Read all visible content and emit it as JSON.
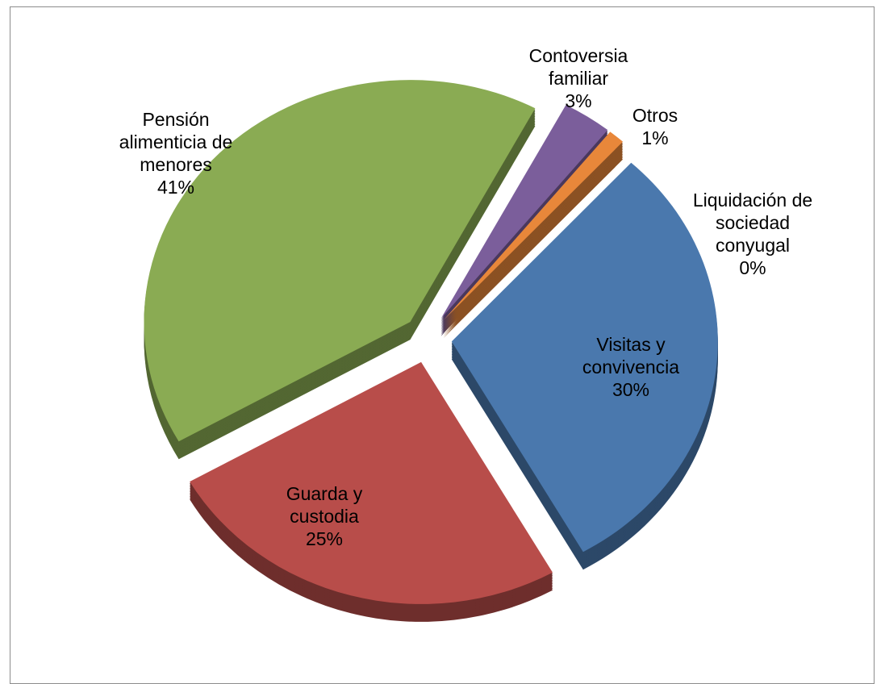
{
  "chart_data": {
    "type": "pie",
    "categories": [
      "Contoversia familiar",
      "Otros",
      "Liquidación de sociedad conyugal",
      "Visitas y convivencia",
      "Guarda y custodia",
      "Pensión alimenticia de menores"
    ],
    "values": [
      3,
      1,
      0,
      30,
      25,
      41
    ],
    "value_labels": [
      "3%",
      "1%",
      "0%",
      "30%",
      "25%",
      "41%"
    ],
    "colors": [
      "#7b5e9b",
      "#e8873a",
      "#41a5c1",
      "#4a78ad",
      "#b84d4a",
      "#8aab53"
    ]
  }
}
